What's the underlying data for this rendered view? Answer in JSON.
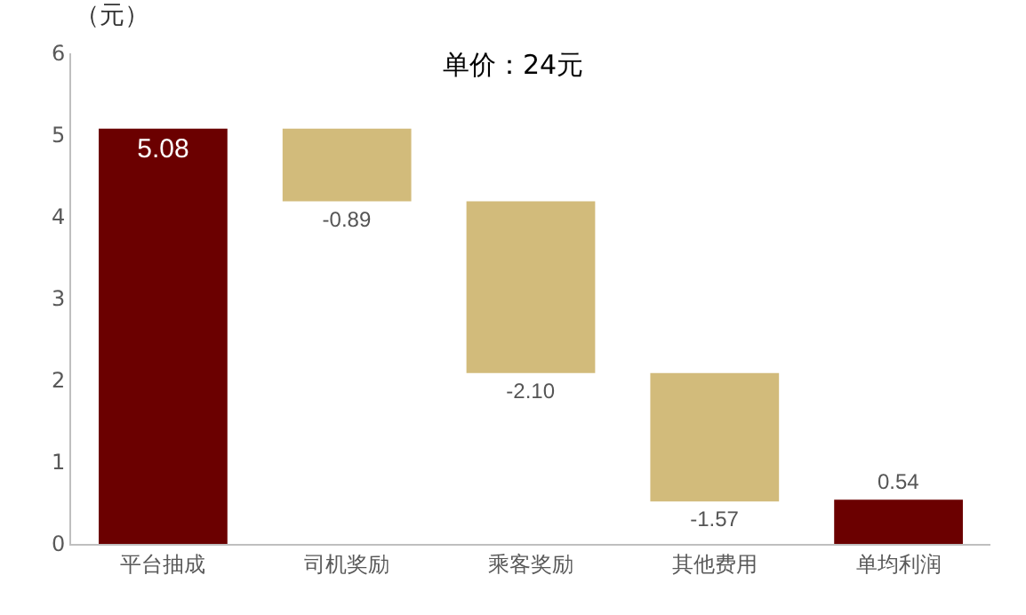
{
  "chart_data": {
    "type": "bar",
    "title": "单价：24元",
    "ylabel": "（元）",
    "categories": [
      "平台抽成",
      "司机奖励",
      "乘客奖励",
      "其他费用",
      "单均利润"
    ],
    "values": [
      5.08,
      -0.89,
      -2.1,
      -1.57,
      0.54
    ],
    "base": [
      0,
      5.08,
      4.19,
      2.09,
      0
    ],
    "colors": [
      "#6b0000",
      "#d2bb7b",
      "#d2bb7b",
      "#d2bb7b",
      "#6b0000"
    ],
    "value_labels": [
      "5.08",
      "-0.89",
      "-2.10",
      "-1.57",
      "0.54"
    ],
    "ylim": [
      0,
      6
    ],
    "yticks": [
      0,
      1,
      2,
      3,
      4,
      5,
      6
    ],
    "grid": false
  }
}
